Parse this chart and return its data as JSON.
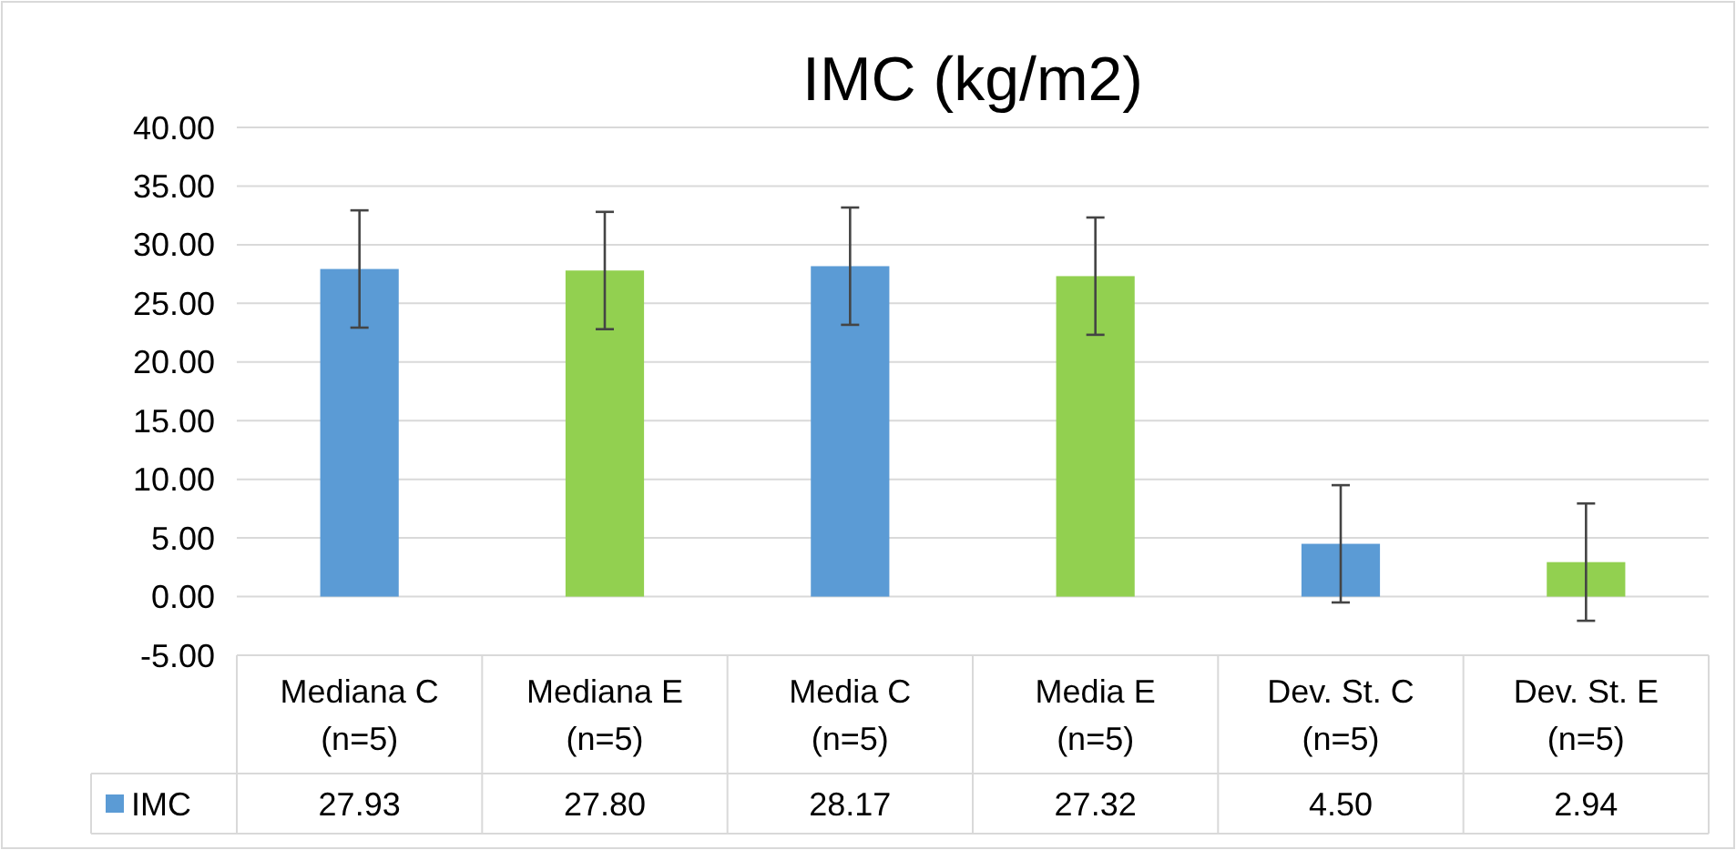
{
  "chart_data": {
    "type": "bar",
    "title": "IMC (kg/m2)",
    "categories": [
      "Mediana C (n=5)",
      "Mediana E (n=5)",
      "Media C (n=5)",
      "Media E (n=5)",
      "Dev. St. C (n=5)",
      "Dev. St. E (n=5)"
    ],
    "series": [
      {
        "name": "IMC",
        "color": "#5b9bd5",
        "colors": [
          "#5b9bd5",
          "#92d050",
          "#5b9bd5",
          "#92d050",
          "#5b9bd5",
          "#92d050"
        ],
        "values": [
          27.93,
          27.8,
          28.17,
          27.32,
          4.5,
          2.94
        ],
        "errors": [
          5,
          5,
          5,
          5,
          5,
          5
        ],
        "value_labels": [
          "27.93",
          "27.80",
          "28.17",
          "27.32",
          "4.50",
          "2.94"
        ]
      }
    ],
    "ylim": [
      -5,
      40
    ],
    "yticks": [
      {
        "value": -5,
        "label": "-5.00"
      },
      {
        "value": 0,
        "label": "0.00"
      },
      {
        "value": 5,
        "label": "5.00"
      },
      {
        "value": 10,
        "label": "10.00"
      },
      {
        "value": 15,
        "label": "15.00"
      },
      {
        "value": 20,
        "label": "20.00"
      },
      {
        "value": 25,
        "label": "25.00"
      },
      {
        "value": 30,
        "label": "30.00"
      },
      {
        "value": 35,
        "label": "35.00"
      },
      {
        "value": 40,
        "label": "40.00"
      }
    ],
    "grid": "y",
    "legend": "bottom"
  }
}
